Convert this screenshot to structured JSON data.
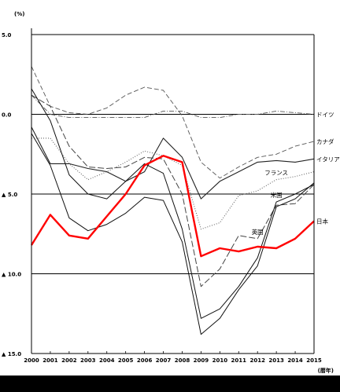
{
  "chart_data": {
    "type": "line",
    "title": "",
    "y_unit": "(%)",
    "x_unit": "(暦年)",
    "x": [
      "2000",
      "2001",
      "2002",
      "2003",
      "2004",
      "2005",
      "2006",
      "2007",
      "2008",
      "2009",
      "2010",
      "2011",
      "2012",
      "2013",
      "2014",
      "2015"
    ],
    "yticks": [
      {
        "value": 5,
        "label": "5.0"
      },
      {
        "value": 0,
        "label": "0.0"
      },
      {
        "value": -5,
        "label": "▲ 5.0"
      },
      {
        "value": -10,
        "label": "▲ 10.0"
      },
      {
        "value": -15,
        "label": "▲ 15.0"
      }
    ],
    "ylim": [
      -15,
      5.5
    ],
    "series": [
      {
        "name": "ドイツ",
        "color": "#555555",
        "dash": "6,2,1,2",
        "width": 0.9,
        "values": [
          1.2,
          0.0,
          -0.2,
          -0.2,
          -0.2,
          -0.2,
          -0.2,
          0.2,
          0.2,
          -0.2,
          -0.2,
          0.0,
          0.0,
          0.2,
          0.1,
          0.0
        ]
      },
      {
        "name": "カナダ",
        "color": "#555555",
        "dash": "6,3",
        "width": 0.9,
        "values": [
          3.0,
          0.5,
          0.1,
          0.0,
          0.4,
          1.2,
          1.7,
          1.5,
          -0.1,
          -3.0,
          -4.0,
          -3.3,
          -2.7,
          -2.5,
          -2.0,
          -1.7
        ]
      },
      {
        "name": "イタリア",
        "color": "#222222",
        "dash": "",
        "width": 1.1,
        "values": [
          -0.8,
          -3.1,
          -3.1,
          -3.4,
          -3.6,
          -4.2,
          -3.6,
          -1.5,
          -2.7,
          -5.3,
          -4.2,
          -3.6,
          -3.0,
          -2.9,
          -3.0,
          -2.8
        ]
      },
      {
        "name": "フランス",
        "color": "#666666",
        "dash": "1,2",
        "width": 1.1,
        "values": [
          -1.5,
          -1.5,
          -3.1,
          -4.1,
          -3.6,
          -3.0,
          -2.3,
          -2.6,
          -3.2,
          -7.2,
          -6.8,
          -5.1,
          -4.8,
          -4.1,
          -3.9,
          -3.6
        ]
      },
      {
        "name": "英国",
        "color": "#444444",
        "dash": "8,3",
        "width": 1.0,
        "values": [
          1.2,
          0.5,
          -2.0,
          -3.3,
          -3.4,
          -3.3,
          -2.7,
          -2.8,
          -5.0,
          -10.8,
          -9.7,
          -7.6,
          -7.8,
          -5.7,
          -5.6,
          -4.4
        ]
      },
      {
        "name": "米国",
        "color": "#111111",
        "dash": "",
        "width": 1.0,
        "values": [
          1.6,
          -0.4,
          -3.8,
          -5.0,
          -5.3,
          -4.2,
          -3.1,
          -3.7,
          -7.2,
          -12.8,
          -12.2,
          -10.8,
          -9.0,
          -5.5,
          -5.0,
          -4.4
        ]
      },
      {
        "name": "",
        "color": "#111111",
        "dash": "",
        "width": 1.0,
        "values": [
          -1.2,
          -3.2,
          -6.5,
          -7.3,
          -6.9,
          -6.2,
          -5.2,
          -5.4,
          -8.0,
          -13.8,
          -12.8,
          -11.0,
          -9.5,
          -5.8,
          -5.3,
          -4.3
        ]
      },
      {
        "name": "日本",
        "color": "#ff0000",
        "dash": "",
        "width": 2.4,
        "values": [
          -8.2,
          -6.3,
          -7.6,
          -7.8,
          -6.4,
          -5.0,
          -3.2,
          -2.6,
          -3.0,
          -8.9,
          -8.4,
          -8.6,
          -8.3,
          -8.4,
          -7.8,
          -6.7
        ]
      }
    ],
    "labels": [
      {
        "text": "ドイツ",
        "series": 0
      },
      {
        "text": "カナダ",
        "series": 1
      },
      {
        "text": "イタリア",
        "series": 2
      },
      {
        "text": "フランス",
        "series": 3,
        "at": 13
      },
      {
        "text": "英国",
        "series": 4,
        "at": 12
      },
      {
        "text": "米国",
        "series": 5,
        "at": 13
      },
      {
        "text": "日本",
        "series": 7
      }
    ],
    "grid": "horizontal",
    "legend": "inline-labels"
  }
}
